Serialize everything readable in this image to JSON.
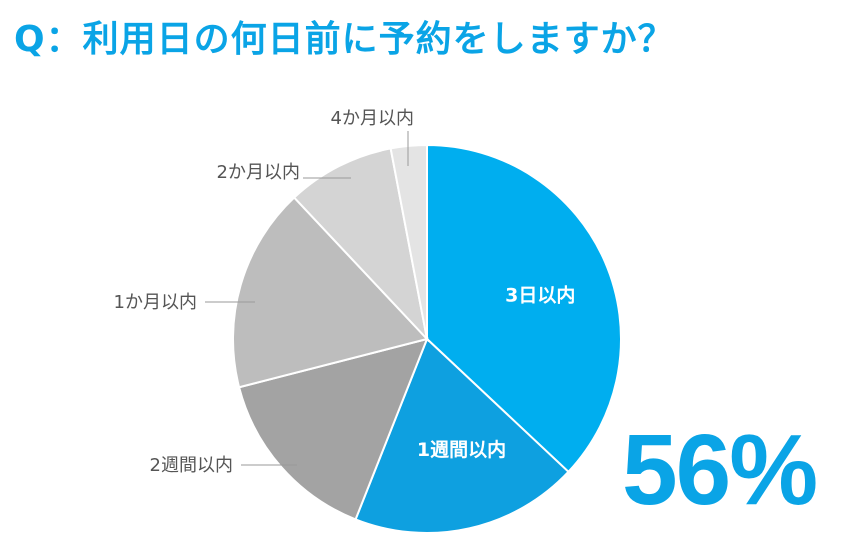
{
  "title": "Q：利用日の何日前に予約をしますか？",
  "highlight_value": "56%",
  "colors": {
    "accent": "#0aa4e6"
  },
  "chart_data": {
    "type": "pie",
    "start": "12 o'clock",
    "direction": "clockwise",
    "slices": [
      {
        "label": "3日以内",
        "value": 37,
        "color": "#00aeef",
        "label_inside": true
      },
      {
        "label": "1週間以内",
        "value": 19,
        "color": "#0ea0e0",
        "label_inside": true
      },
      {
        "label": "2週間以内",
        "value": 15,
        "color": "#a3a3a3",
        "label_inside": false
      },
      {
        "label": "1か月以内",
        "value": 17,
        "color": "#bdbdbd",
        "label_inside": false
      },
      {
        "label": "2か月以内",
        "value": 9,
        "color": "#d4d4d4",
        "label_inside": false
      },
      {
        "label": "4か月以内",
        "value": 3,
        "color": "#e4e4e4",
        "label_inside": false
      }
    ]
  }
}
